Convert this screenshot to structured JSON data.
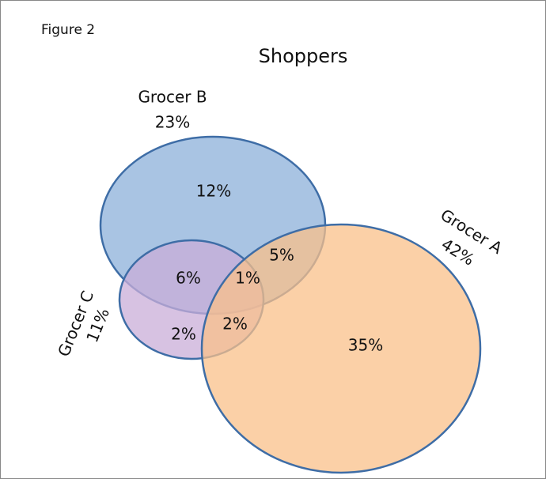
{
  "figure_label": "Figure 2",
  "title": "Shoppers",
  "sets": [
    {
      "label": "Grocer A",
      "total": "42%"
    },
    {
      "label": "Grocer B",
      "total": "23%"
    },
    {
      "label": "Grocer C",
      "total": "11%"
    }
  ],
  "regions": [
    "12%",
    "5%",
    "6%",
    "1%",
    "2%",
    "2%",
    "35%"
  ]
}
